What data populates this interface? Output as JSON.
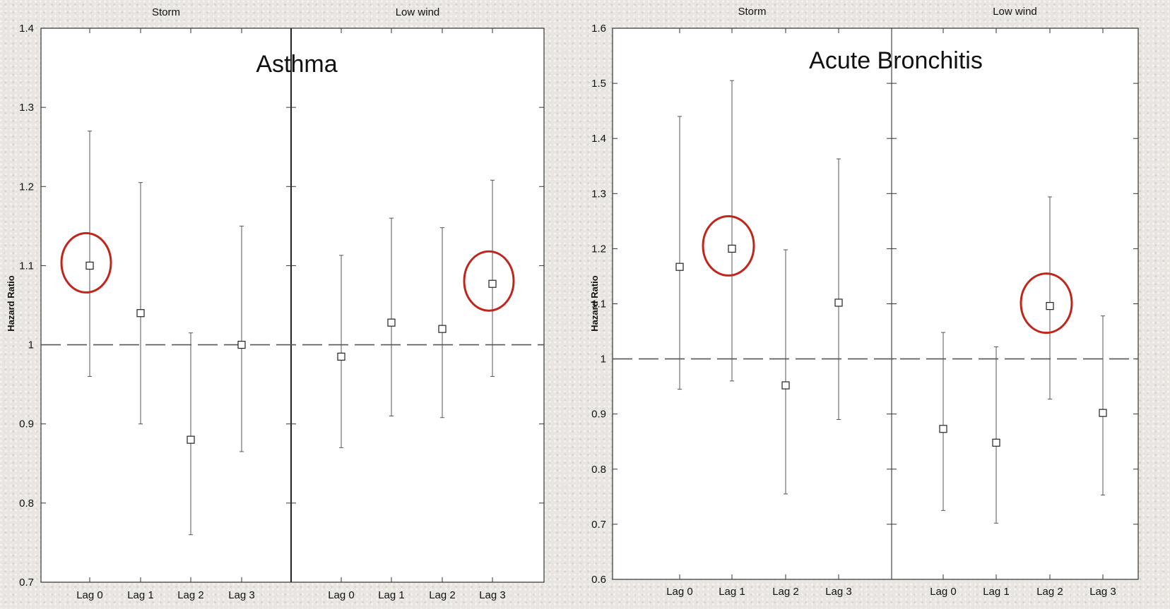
{
  "chart_data": [
    {
      "type": "scatter",
      "title": "Asthma",
      "ylabel": "Hazard Ratio",
      "ylim": [
        0.7,
        1.4
      ],
      "yticks": [
        "0.7",
        "0.8",
        "0.9",
        "1",
        "1.1",
        "1.2",
        "1.3",
        "1.4"
      ],
      "reference_line": 1,
      "highlight_color": "#c0261c",
      "panels": [
        {
          "title": "Storm",
          "categories": [
            "Lag 0",
            "Lag 1",
            "Lag 2",
            "Lag 3"
          ],
          "estimate": [
            1.1,
            1.04,
            0.88,
            1.0
          ],
          "lower": [
            0.96,
            0.9,
            0.76,
            0.865
          ],
          "upper": [
            1.27,
            1.205,
            1.015,
            1.15
          ],
          "highlighted": [
            0
          ]
        },
        {
          "title": "Low wind",
          "categories": [
            "Lag 0",
            "Lag 1",
            "Lag 2",
            "Lag 3"
          ],
          "estimate": [
            0.985,
            1.028,
            1.02,
            1.077
          ],
          "lower": [
            0.87,
            0.91,
            0.908,
            0.96
          ],
          "upper": [
            1.113,
            1.16,
            1.148,
            1.208
          ],
          "highlighted": [
            3
          ]
        }
      ]
    },
    {
      "type": "scatter",
      "title": "Acute Bronchitis",
      "ylabel": "Hazard Ratio",
      "ylim": [
        0.6,
        1.6
      ],
      "yticks": [
        "0.6",
        "0.7",
        "0.8",
        "0.9",
        "1",
        "1.1",
        "1.2",
        "1.3",
        "1.4",
        "1.5",
        "1.6"
      ],
      "reference_line": 1,
      "highlight_color": "#c0261c",
      "panels": [
        {
          "title": "Storm",
          "categories": [
            "Lag 0",
            "Lag 1",
            "Lag 2",
            "Lag 3"
          ],
          "estimate": [
            1.167,
            1.2,
            0.952,
            1.102
          ],
          "lower": [
            0.945,
            0.96,
            0.755,
            0.89
          ],
          "upper": [
            1.44,
            1.505,
            1.198,
            1.363
          ],
          "highlighted": [
            1
          ]
        },
        {
          "title": "Low wind",
          "categories": [
            "Lag 0",
            "Lag 1",
            "Lag 2",
            "Lag 3"
          ],
          "estimate": [
            0.873,
            0.848,
            1.096,
            0.902
          ],
          "lower": [
            0.725,
            0.702,
            0.927,
            0.753
          ],
          "upper": [
            1.048,
            1.022,
            1.294,
            1.078
          ],
          "highlighted": [
            2
          ]
        }
      ]
    }
  ]
}
